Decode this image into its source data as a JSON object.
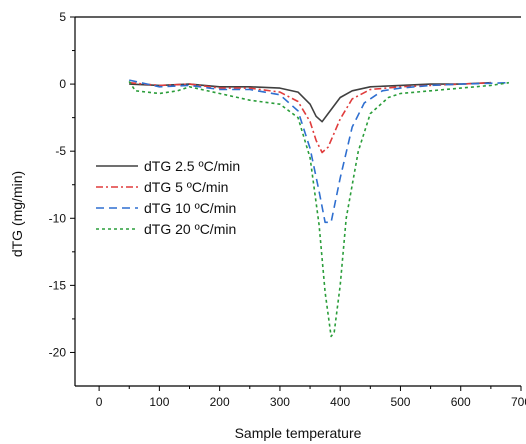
{
  "chart_data": {
    "type": "line",
    "title": "",
    "xlabel": "Sample temperature",
    "ylabel": "dTG (mg/min)",
    "xlim": [
      -40,
      700
    ],
    "ylim": [
      -22.5,
      5
    ],
    "xticks": [
      0,
      100,
      200,
      300,
      400,
      500,
      600,
      700
    ],
    "yticks": [
      5,
      0,
      -5,
      -10,
      -15,
      -20
    ],
    "grid": false,
    "legend_position": "left, middle",
    "series": [
      {
        "name": "dTG 2.5 ºC/min",
        "color": "#404040",
        "dash": "solid",
        "x": [
          50,
          100,
          150,
          200,
          250,
          300,
          330,
          350,
          360,
          370,
          380,
          400,
          420,
          450,
          500,
          550,
          600,
          650
        ],
        "y": [
          0,
          -0.1,
          0,
          -0.2,
          -0.2,
          -0.3,
          -0.6,
          -1.5,
          -2.4,
          -2.8,
          -2.2,
          -1.0,
          -0.5,
          -0.2,
          -0.1,
          0,
          0,
          0.1
        ]
      },
      {
        "name": "dTG 5 ºC/min",
        "color": "#e03c3c",
        "dash": "dashdot",
        "x": [
          50,
          100,
          150,
          200,
          250,
          300,
          330,
          350,
          360,
          370,
          380,
          400,
          420,
          450,
          500,
          550,
          600,
          650
        ],
        "y": [
          0.1,
          -0.1,
          0,
          -0.3,
          -0.3,
          -0.6,
          -1.3,
          -2.8,
          -4.2,
          -5.1,
          -4.7,
          -2.6,
          -1.1,
          -0.4,
          -0.2,
          -0.1,
          0,
          0.1
        ]
      },
      {
        "name": "dTG 10 ºC/min",
        "color": "#2f6fd0",
        "dash": "dash",
        "x": [
          50,
          100,
          150,
          200,
          250,
          300,
          330,
          350,
          365,
          375,
          385,
          400,
          420,
          440,
          470,
          500,
          550,
          600,
          680
        ],
        "y": [
          0.3,
          -0.2,
          -0.1,
          -0.4,
          -0.4,
          -0.8,
          -2.0,
          -4.8,
          -8.0,
          -10.3,
          -10.3,
          -7.0,
          -3.2,
          -1.4,
          -0.5,
          -0.3,
          -0.1,
          0,
          0.1
        ]
      },
      {
        "name": "dTG 20 ºC/min",
        "color": "#2a9d3a",
        "dash": "dot",
        "x": [
          50,
          60,
          100,
          130,
          150,
          200,
          250,
          300,
          330,
          350,
          365,
          375,
          385,
          390,
          400,
          410,
          430,
          450,
          480,
          500,
          550,
          600,
          650,
          680
        ],
        "y": [
          0.2,
          -0.5,
          -0.7,
          -0.5,
          -0.2,
          -0.7,
          -1.2,
          -1.5,
          -2.5,
          -5.5,
          -10.5,
          -15.5,
          -18.8,
          -18.5,
          -15.0,
          -10.0,
          -5.0,
          -2.2,
          -1.0,
          -0.7,
          -0.5,
          -0.3,
          -0.1,
          0.1
        ]
      }
    ]
  }
}
